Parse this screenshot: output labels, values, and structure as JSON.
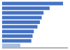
{
  "chart_data": {
    "type": "bar",
    "orientation": "horizontal",
    "categories": [
      null,
      null,
      null,
      null,
      null,
      null,
      null,
      null,
      null,
      null
    ],
    "values": [
      100,
      78,
      68,
      65,
      62,
      58,
      52,
      50,
      48,
      30
    ],
    "colors": [
      "#4472c4",
      "#4472c4",
      "#4472c4",
      "#4472c4",
      "#4472c4",
      "#4472c4",
      "#4472c4",
      "#4472c4",
      "#4472c4",
      "#a8bfdf"
    ],
    "xlim": [
      0,
      108
    ],
    "tick_labels": false
  }
}
